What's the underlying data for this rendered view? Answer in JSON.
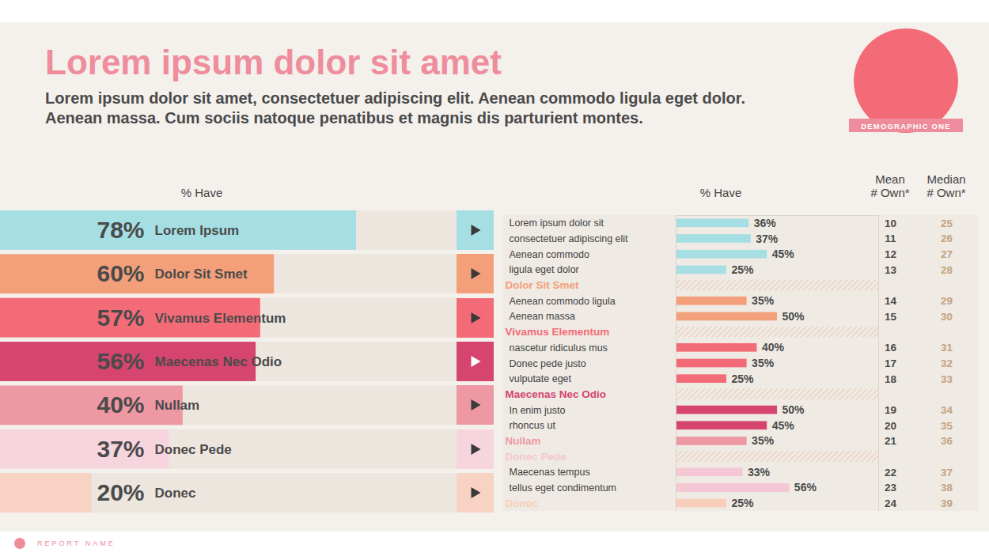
{
  "header": {
    "title": "Lorem ipsum dolor sit amet",
    "subtitle": "Lorem ipsum dolor sit amet, consectetuer adipiscing elit. Aenean commodo ligula eget dolor. Aenean massa. Cum sociis natoque penatibus et magnis dis parturient montes.",
    "badge": "DEMOGRAPHIC ONE"
  },
  "footer": "REPORT NAME",
  "chart_data": [
    {
      "type": "bar",
      "orientation": "horizontal",
      "title": "% Have",
      "categories": [
        "Lorem Ipsum",
        "Dolor Sit Smet",
        "Vivamus Elementum",
        "Maecenas Nec Odio",
        "Nullam",
        "Donec Pede",
        "Donec"
      ],
      "values": [
        78,
        60,
        57,
        56,
        40,
        37,
        20
      ],
      "value_labels": [
        "78%",
        "60%",
        "57%",
        "56%",
        "40%",
        "37%",
        "20%"
      ],
      "colors": [
        "#a6dfe3",
        "#f3a07a",
        "#f46b78",
        "#d6456f",
        "#ee98a3",
        "#f7d5df",
        "#f8d3c4"
      ],
      "xlim": [
        0,
        100
      ],
      "tick_labels": false,
      "data_labels": true
    },
    {
      "type": "bar",
      "orientation": "horizontal",
      "categories": [
        "Lorem ipsum dolor sit",
        "consectetuer adipiscing elit",
        "Aenean commodo",
        "ligula eget dolor",
        "Dolor Sit Smet",
        "Aenean commodo ligula",
        "Aenean massa",
        "Vivamus Elementum",
        "nascetur ridiculus mus",
        "Donec pede justo",
        "vulputate eget",
        "Maecenas Nec Odio",
        "In enim justo",
        "rhoncus ut",
        "Nullam",
        "Donec Pede",
        "Maecenas tempus",
        "tellus eget condimentum",
        "Donec"
      ],
      "group_heads": [
        false,
        false,
        false,
        false,
        true,
        false,
        false,
        true,
        false,
        false,
        false,
        true,
        false,
        false,
        true,
        true,
        false,
        false,
        true
      ],
      "colors": [
        "#a6dfe3",
        "#a6dfe3",
        "#a6dfe3",
        "#a6dfe3",
        "#f3a07a",
        "#f3a07a",
        "#f3a07a",
        "#f46b78",
        "#f46b78",
        "#f46b78",
        "#f46b78",
        "#d6456f",
        "#d6456f",
        "#d6456f",
        "#ee98a3",
        "#f5c6d3",
        "#f5c6d3",
        "#f5c6d3",
        "#f8cdb9"
      ],
      "series": [
        {
          "name": "% Have",
          "type": "bar",
          "values": [
            36,
            37,
            45,
            25,
            null,
            35,
            50,
            null,
            40,
            35,
            25,
            null,
            50,
            45,
            35,
            null,
            33,
            56,
            25
          ],
          "value_labels": [
            "36%",
            "37%",
            "45%",
            "25%",
            null,
            "35%",
            "50%",
            null,
            "40%",
            "35%",
            "25%",
            null,
            "50%",
            "45%",
            "35%",
            null,
            "33%",
            "56%",
            "25%"
          ]
        },
        {
          "name": "Mean # Own*",
          "type": "text",
          "color": "#4a4a4a",
          "values": [
            10,
            11,
            12,
            13,
            null,
            14,
            15,
            null,
            16,
            17,
            18,
            null,
            19,
            20,
            21,
            null,
            22,
            23,
            24
          ]
        },
        {
          "name": "Median # Own*",
          "type": "text",
          "color": "#c4a27f",
          "values": [
            25,
            26,
            27,
            28,
            null,
            29,
            30,
            null,
            31,
            32,
            33,
            null,
            34,
            35,
            36,
            null,
            37,
            38,
            39
          ]
        }
      ],
      "xlim": [
        0,
        100
      ],
      "tick_labels": false,
      "data_labels": true
    }
  ]
}
